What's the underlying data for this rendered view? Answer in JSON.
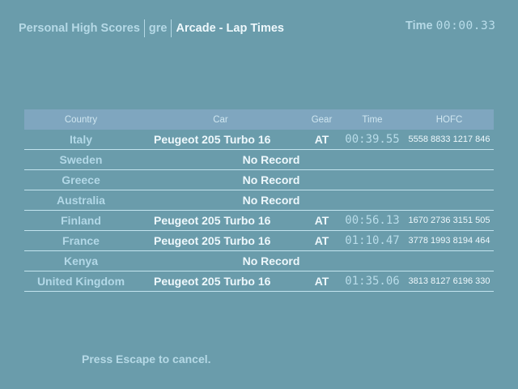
{
  "header": {
    "section": "Personal High Scores",
    "user": "gre",
    "mode": "Arcade - Lap Times",
    "time_label": "Time",
    "time_value": "00:00.33"
  },
  "table": {
    "columns": [
      "Country",
      "Car",
      "Gear",
      "Time",
      "HOFC"
    ],
    "rows": [
      {
        "country": "Italy",
        "car": "Peugeot 205 Turbo 16",
        "gear": "AT",
        "time": "00:39.55",
        "hofc": "5558 8833 1217 846"
      },
      {
        "country": "Sweden",
        "car": "No Record"
      },
      {
        "country": "Greece",
        "car": "No Record"
      },
      {
        "country": "Australia",
        "car": "No Record"
      },
      {
        "country": "Finland",
        "car": "Peugeot 205 Turbo 16",
        "gear": "AT",
        "time": "00:56.13",
        "hofc": "1670 2736 3151 505"
      },
      {
        "country": "France",
        "car": "Peugeot 205 Turbo 16",
        "gear": "AT",
        "time": "01:10.47",
        "hofc": "3778 1993 8194 464"
      },
      {
        "country": "Kenya",
        "car": "No Record"
      },
      {
        "country": "United Kingdom",
        "car": "Peugeot 205 Turbo 16",
        "gear": "AT",
        "time": "01:35.06",
        "hofc": "3813 8127 6196 330"
      }
    ]
  },
  "footer": {
    "hint": "Press Escape to cancel."
  }
}
